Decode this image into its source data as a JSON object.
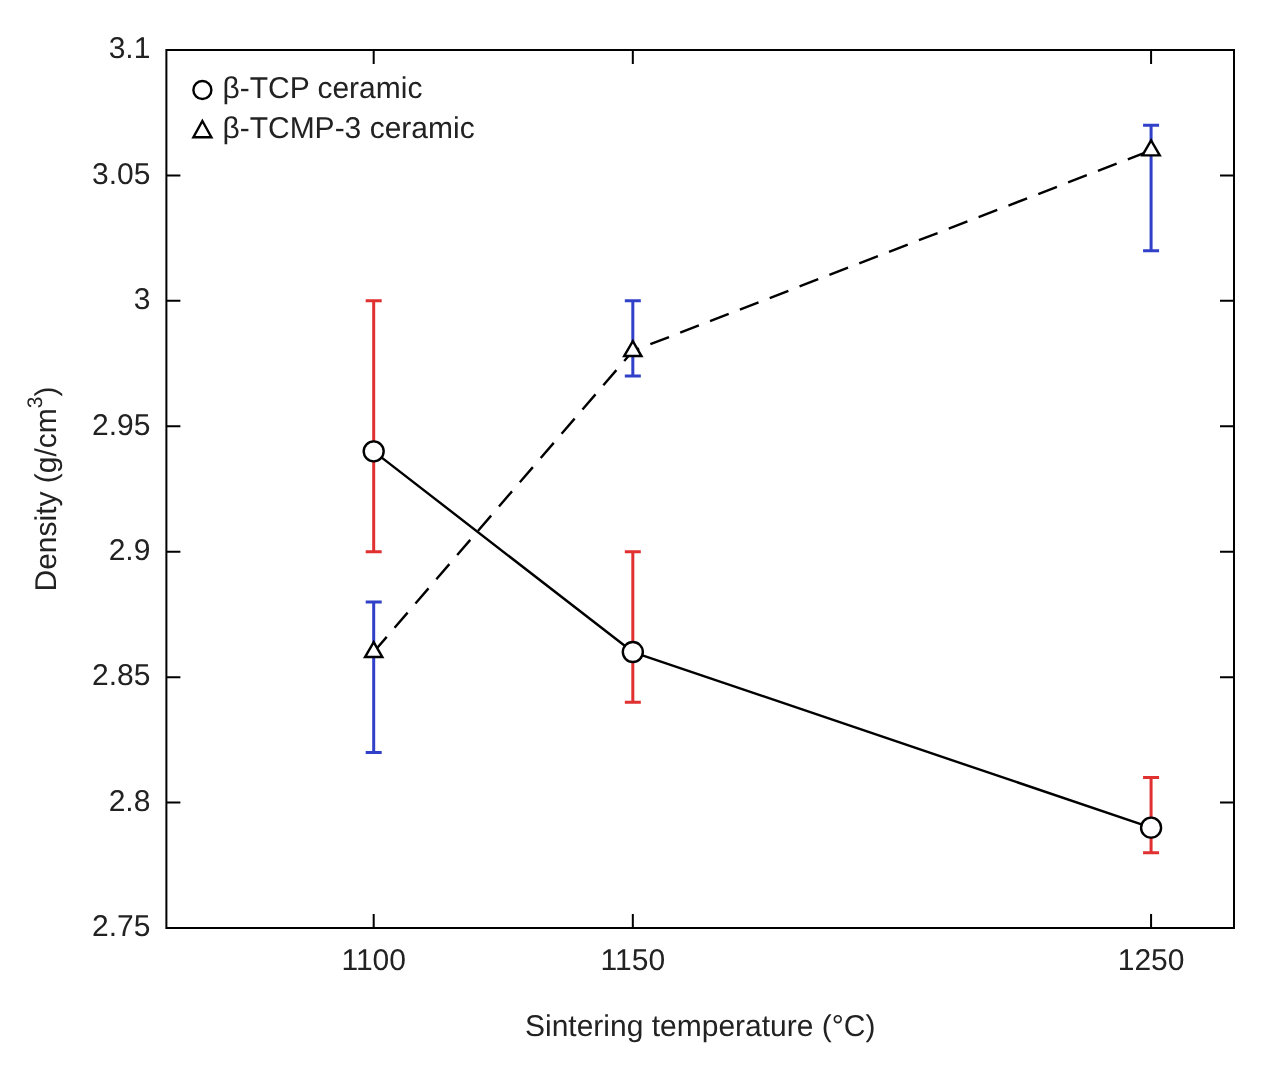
{
  "chart_data": {
    "type": "line",
    "xlabel": "Sintering temperature (°C)",
    "ylabel": "Density (g/cm$^{3}$)",
    "x": [
      1100,
      1150,
      1250
    ],
    "xlim": [
      1060,
      1266
    ],
    "xticks": [
      1100,
      1150,
      1250
    ],
    "ylim": [
      2.75,
      3.1
    ],
    "yticks": [
      2.75,
      2.8,
      2.85,
      2.9,
      2.95,
      3,
      3.05,
      3.1
    ],
    "grid": false,
    "legend": "top left",
    "series": [
      {
        "name": "β-TCP ceramic",
        "color": "#000000",
        "values": [
          2.94,
          2.86,
          2.79
        ],
        "errors": [
          [
            2.9,
            3.0
          ],
          [
            2.84,
            2.9
          ],
          [
            2.78,
            2.81
          ]
        ],
        "marker": "circle",
        "line_style": "solid"
      },
      {
        "name": "β-TCMP-3 ceramic",
        "color": "#000000",
        "values": [
          2.86,
          2.98,
          3.06
        ],
        "errors": [
          [
            2.82,
            2.88
          ],
          [
            2.97,
            3.0
          ],
          [
            3.02,
            3.07
          ]
        ],
        "marker": "triangle",
        "line_style": "dashed"
      }
    ]
  }
}
